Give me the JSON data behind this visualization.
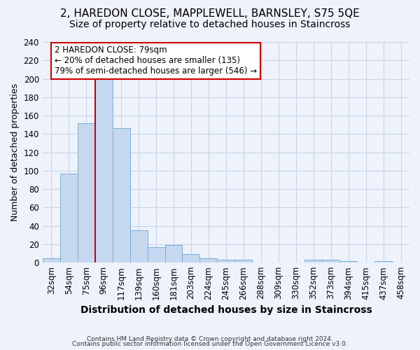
{
  "title": "2, HAREDON CLOSE, MAPPLEWELL, BARNSLEY, S75 5QE",
  "subtitle": "Size of property relative to detached houses in Staincross",
  "xlabel": "Distribution of detached houses by size in Staincross",
  "ylabel": "Number of detached properties",
  "categories": [
    "32sqm",
    "54sqm",
    "75sqm",
    "96sqm",
    "117sqm",
    "139sqm",
    "160sqm",
    "181sqm",
    "203sqm",
    "224sqm",
    "245sqm",
    "266sqm",
    "288sqm",
    "309sqm",
    "330sqm",
    "352sqm",
    "373sqm",
    "394sqm",
    "415sqm",
    "437sqm",
    "458sqm"
  ],
  "values": [
    5,
    97,
    152,
    200,
    146,
    35,
    17,
    19,
    9,
    5,
    3,
    3,
    0,
    0,
    0,
    3,
    3,
    2,
    0,
    2,
    0
  ],
  "bar_color": "#c5d8f0",
  "bar_edge_color": "#7aafd4",
  "background_color": "#eef2fb",
  "grid_color": "#c8d4e8",
  "annotation_line1": "2 HAREDON CLOSE: 79sqm",
  "annotation_line2": "← 20% of detached houses are smaller (135)",
  "annotation_line3": "79% of semi-detached houses are larger (546) →",
  "annotation_box_color": "#ffffff",
  "annotation_border_color": "#cc0000",
  "vline_color": "#cc0000",
  "vline_x_index": 2,
  "title_fontsize": 11,
  "subtitle_fontsize": 10,
  "xlabel_fontsize": 10,
  "ylabel_fontsize": 9,
  "tick_fontsize": 8.5,
  "footer1": "Contains HM Land Registry data © Crown copyright and database right 2024.",
  "footer2": "Contains public sector information licensed under the Open Government Licence v3.0.",
  "ylim": [
    0,
    240
  ],
  "yticks": [
    0,
    20,
    40,
    60,
    80,
    100,
    120,
    140,
    160,
    180,
    200,
    220,
    240
  ]
}
